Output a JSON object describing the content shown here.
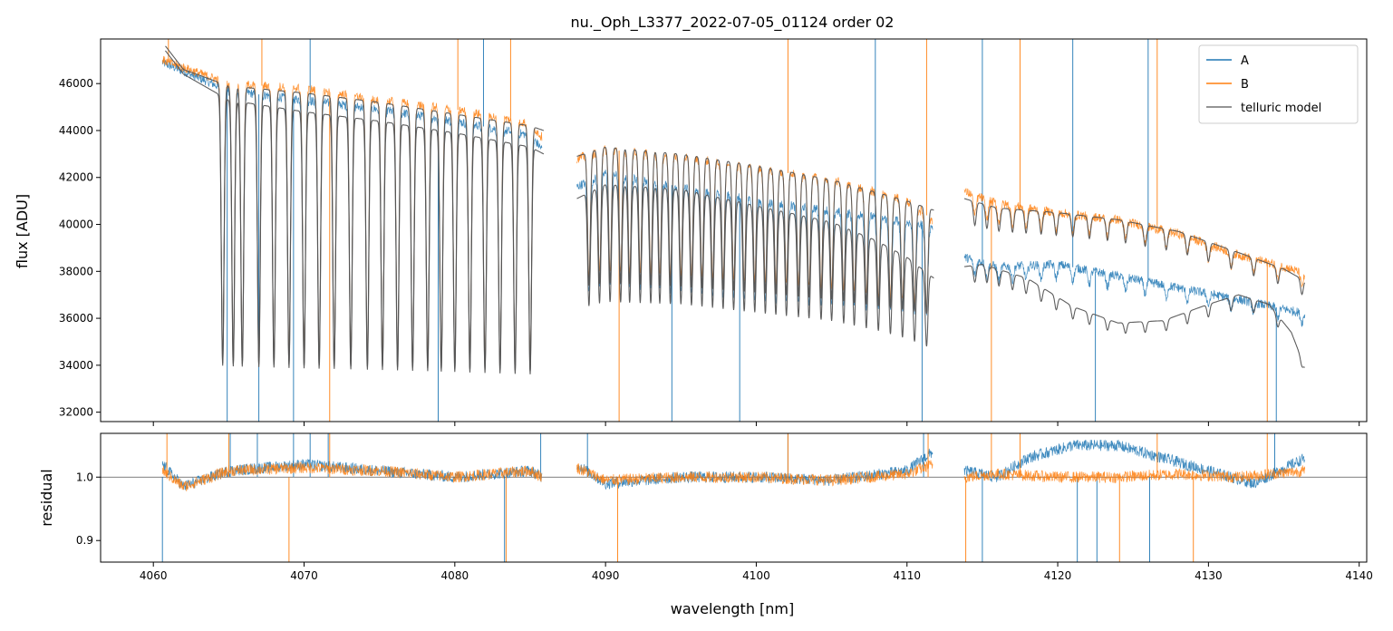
{
  "chart_data": [
    {
      "type": "line",
      "title": "nu._Oph_L3377_2022-07-05_01124  order 02",
      "xlabel": "",
      "ylabel": "flux [ADU]",
      "xlim": [
        4056.5,
        4140.5
      ],
      "ylim": [
        31600,
        47900
      ],
      "yticks": [
        32000,
        34000,
        36000,
        38000,
        40000,
        42000,
        44000,
        46000
      ],
      "ytick_labels": [
        "32000",
        "34000",
        "36000",
        "38000",
        "40000",
        "42000",
        "44000",
        "46000"
      ],
      "legend": {
        "position": "top-right",
        "entries": [
          "A",
          "B",
          "telluric model"
        ]
      },
      "series": [
        {
          "name": "A",
          "color": "#1f77b4",
          "segments": [
            {
              "x": [
                4060.6,
                4065,
                4070,
                4075,
                4080,
                4085,
                4085.8
              ],
              "y": [
                46900,
                45700,
                45300,
                44900,
                44400,
                43800,
                43200
              ]
            },
            {
              "x": [
                4088.1,
                4090,
                4095,
                4100,
                4105,
                4110,
                4111.7
              ],
              "y": [
                41600,
                42200,
                41600,
                41000,
                40600,
                40100,
                39900
              ]
            },
            {
              "x": [
                4113.8,
                4116,
                4120,
                4124,
                4128,
                4132,
                4135,
                4136.4
              ],
              "y": [
                38600,
                38200,
                38300,
                37800,
                37300,
                36800,
                36400,
                36200
              ]
            }
          ],
          "spikes": [
            4064.9,
            4067.0,
            4069.3,
            4070.4,
            4078.9,
            4081.9,
            4094.4,
            4098.9,
            4107.9,
            4111.0,
            4115.0,
            4121.0,
            4122.5,
            4126.0,
            4134.5
          ]
        },
        {
          "name": "B",
          "color": "#ff7f0e",
          "segments": [
            {
              "x": [
                4060.6,
                4065,
                4070,
                4075,
                4080,
                4085,
                4085.8
              ],
              "y": [
                47000,
                46000,
                45800,
                45300,
                44900,
                44300,
                43700
              ]
            },
            {
              "x": [
                4088.1,
                4090,
                4095,
                4100,
                4105,
                4110,
                4111.7
              ],
              "y": [
                42800,
                43200,
                42900,
                42400,
                41900,
                41000,
                40200
              ]
            },
            {
              "x": [
                4113.8,
                4116,
                4120,
                4124,
                4128,
                4132,
                4135,
                4136.4
              ],
              "y": [
                41400,
                40900,
                40500,
                40200,
                39600,
                38700,
                38200,
                37900
              ]
            }
          ],
          "spikes": [
            4061.0,
            4067.2,
            4071.7,
            4080.2,
            4083.7,
            4090.9,
            4102.1,
            4111.3,
            4115.6,
            4117.5,
            4126.6,
            4133.9
          ]
        },
        {
          "name": "telluric model",
          "color": "#555555",
          "segments": [
            {
              "x": [
                4060.8,
                4062,
                4065,
                4070,
                4075,
                4080,
                4085,
                4085.9
              ],
              "y": [
                47600,
                46600,
                45900,
                45600,
                45200,
                44700,
                44200,
                44000
              ]
            },
            {
              "x": [
                4060.8,
                4062,
                4065,
                4070,
                4075,
                4080,
                4085,
                4085.9
              ],
              "y": [
                47400,
                46400,
                45300,
                44800,
                44400,
                43900,
                43300,
                43000
              ]
            },
            {
              "x": [
                4088.1,
                4090,
                4095,
                4100,
                4105,
                4110,
                4111.8
              ],
              "y": [
                42900,
                43300,
                43000,
                42500,
                41900,
                41000,
                40600
              ]
            },
            {
              "x": [
                4088.1,
                4090,
                4095,
                4100,
                4105,
                4108,
                4110,
                4111.8
              ],
              "y": [
                41100,
                41700,
                41500,
                40800,
                40100,
                39300,
                38600,
                37700
              ]
            },
            {
              "x": [
                4113.8,
                4116,
                4120,
                4124,
                4128,
                4132,
                4135,
                4136.4
              ],
              "y": [
                41100,
                40700,
                40500,
                40200,
                39700,
                38800,
                38100,
                37600
              ]
            },
            {
              "x": [
                4113.8,
                4115,
                4118,
                4121,
                4124,
                4127,
                4130,
                4132,
                4134,
                4135.5,
                4136.4
              ],
              "y": [
                38200,
                38300,
                37700,
                36500,
                35800,
                35900,
                36600,
                37000,
                36600,
                35400,
                33900
              ]
            }
          ],
          "absorption_lines": [
            4064.6,
            4065.3,
            4065.9,
            4067.0,
            4068.0,
            4069.0,
            4070.0,
            4071.0,
            4072.0,
            4073.1,
            4074.2,
            4075.2,
            4076.2,
            4077.2,
            4078.2,
            4079.1,
            4080.0,
            4081.0,
            4082.0,
            4083.0,
            4084.0,
            4085.0,
            4088.9,
            4089.6,
            4090.3,
            4091.0,
            4091.6,
            4092.3,
            4093.0,
            4093.6,
            4094.3,
            4095.0,
            4095.7,
            4096.4,
            4097.1,
            4097.8,
            4098.5,
            4099.2,
            4099.9,
            4100.6,
            4101.3,
            4102.0,
            4102.8,
            4103.5,
            4104.3,
            4105.0,
            4105.8,
            4106.5,
            4107.3,
            4108.1,
            4108.9,
            4109.7,
            4110.5,
            4111.3,
            4114.5,
            4115.3,
            4116.1,
            4117.0,
            4117.9,
            4118.9,
            4119.9,
            4121.0,
            4122.1,
            4123.3,
            4124.5,
            4125.8,
            4127.2,
            4128.6,
            4130.0,
            4131.5,
            4133.0,
            4134.6,
            4136.2
          ]
        }
      ]
    },
    {
      "type": "line",
      "title": "",
      "xlabel": "wavelength [nm]",
      "ylabel": "residual",
      "xlim": [
        4056.5,
        4140.5
      ],
      "ylim": [
        0.866,
        1.069
      ],
      "xticks": [
        4060,
        4070,
        4080,
        4090,
        4100,
        4110,
        4120,
        4130,
        4140
      ],
      "xtick_labels": [
        "4060",
        "4070",
        "4080",
        "4090",
        "4100",
        "4110",
        "4120",
        "4130",
        "4140"
      ],
      "yticks": [
        0.9,
        1.0
      ],
      "ytick_labels": [
        "0.9",
        "1.0"
      ],
      "reference_line": 1.0,
      "series": [
        {
          "name": "A",
          "color": "#1f77b4",
          "segments": [
            {
              "x": [
                4060.6,
                4062,
                4065,
                4070,
                4075,
                4080,
                4085,
                4085.8
              ],
              "y": [
                1.02,
                0.985,
                1.01,
                1.02,
                1.01,
                1.0,
                1.01,
                1.0
              ]
            },
            {
              "x": [
                4088.1,
                4090,
                4095,
                4100,
                4105,
                4110,
                4111.7
              ],
              "y": [
                1.02,
                0.99,
                1.0,
                1.0,
                0.995,
                1.01,
                1.04
              ]
            },
            {
              "x": [
                4113.8,
                4116,
                4118,
                4121,
                4124,
                4127,
                4130,
                4133,
                4136.4
              ],
              "y": [
                1.01,
                1.0,
                1.03,
                1.05,
                1.05,
                1.03,
                1.01,
                0.99,
                1.03
              ]
            }
          ],
          "spikes": [
            4060.6,
            4065.1,
            4066.9,
            4069.3,
            4070.4,
            4071.6,
            4083.3,
            4085.7,
            4088.8,
            4102.1,
            4111.1,
            4115.0,
            4121.3,
            4122.6,
            4126.1,
            4134.4
          ]
        },
        {
          "name": "B",
          "color": "#ff7f0e",
          "segments": [
            {
              "x": [
                4060.6,
                4062,
                4065,
                4070,
                4075,
                4080,
                4085,
                4085.8
              ],
              "y": [
                1.01,
                0.985,
                1.01,
                1.015,
                1.01,
                1.0,
                1.01,
                1.0
              ]
            },
            {
              "x": [
                4088.1,
                4090,
                4095,
                4100,
                4105,
                4110,
                4111.7
              ],
              "y": [
                1.015,
                0.995,
                1.0,
                1.0,
                0.995,
                1.005,
                1.02
              ]
            },
            {
              "x": [
                4113.8,
                4116,
                4120,
                4124,
                4128,
                4132,
                4136.4
              ],
              "y": [
                1.0,
                1.005,
                1.0,
                1.0,
                1.005,
                1.0,
                1.01
              ]
            }
          ],
          "spikes": [
            4060.9,
            4065.0,
            4069.0,
            4071.7,
            4083.4,
            4090.8,
            4102.1,
            4111.4,
            4113.9,
            4115.6,
            4117.5,
            4124.1,
            4126.6,
            4129.0,
            4133.9
          ]
        }
      ]
    }
  ]
}
